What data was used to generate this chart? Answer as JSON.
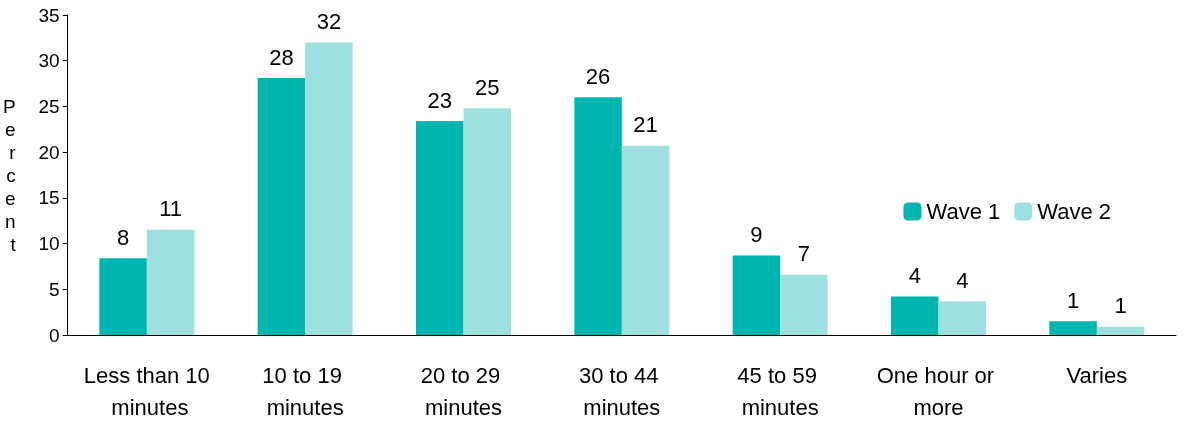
{
  "chart_data": {
    "type": "bar",
    "ylabel": "Percent",
    "categories": [
      "Less than 10 minutes",
      "10 to 19 minutes",
      "20 to 29 minutes",
      "30 to 44 minutes",
      "45 to 59 minutes",
      "One hour or more",
      "Varies"
    ],
    "series": [
      {
        "name": "Wave 1",
        "color": "#00b5b0",
        "values": [
          8.4,
          28.1,
          23.4,
          26,
          8.7,
          4.2,
          1.5
        ],
        "value_labels": [
          "8",
          "28",
          "23",
          "26",
          "9",
          "4",
          "1"
        ]
      },
      {
        "name": "Wave 2",
        "color": "#9ee0e0",
        "values": [
          11.5,
          32,
          24.8,
          20.7,
          6.6,
          3.7,
          0.9
        ],
        "value_labels": [
          "11",
          "32",
          "25",
          "21",
          "7",
          "4",
          "1"
        ]
      }
    ],
    "ylim": [
      0,
      35
    ],
    "yticks": [
      0,
      5,
      10,
      15,
      20,
      25,
      30,
      35
    ],
    "grid": false,
    "legend": "right"
  }
}
